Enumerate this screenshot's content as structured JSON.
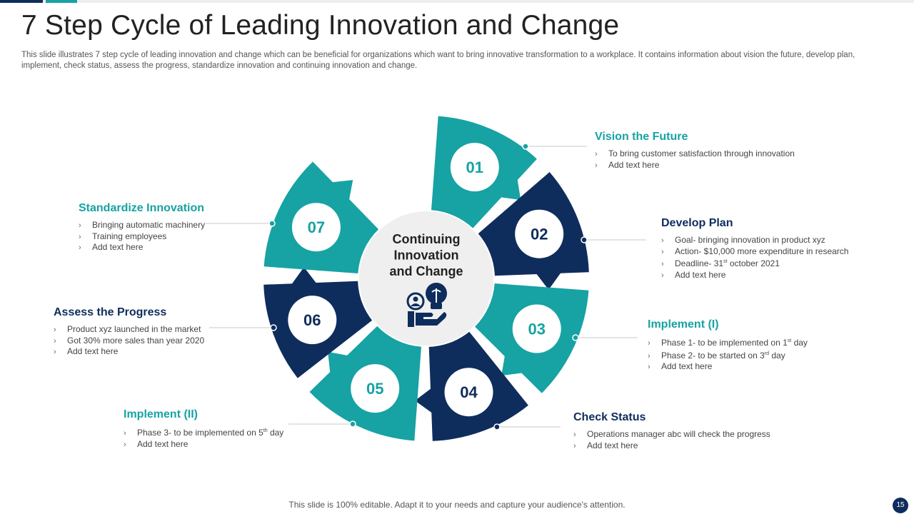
{
  "title": "7 Step Cycle of Leading Innovation and Change",
  "subtitle": "This slide illustrates 7 step cycle of leading innovation and change which can be beneficial for organizations which want to bring innovative transformation to a workplace. It contains information about vision the future, develop plan, implement, check status, assess the progress, standardize innovation and continuing innovation and change.",
  "center": {
    "line1": "Continuing",
    "line2": "Innovation",
    "line3": "and Change",
    "icon": "innovation-lightbulb-hand-icon"
  },
  "colors": {
    "teal": "#17a2a3",
    "navy": "#0e2d5c",
    "center_fill": "#efefef"
  },
  "steps": [
    {
      "number": "01",
      "label": "Vision the Future",
      "color": "teal",
      "bullets": [
        [
          "To bring customer satisfaction through  innovation",
          "",
          ""
        ],
        [
          "Add text here",
          "",
          ""
        ]
      ]
    },
    {
      "number": "02",
      "label": "Develop Plan",
      "color": "navy",
      "bullets": [
        [
          "Goal- bringing innovation in product xyz",
          "",
          ""
        ],
        [
          "Action- $10,000 more expenditure in research",
          "",
          ""
        ],
        [
          "Deadline- 31",
          "st",
          " october 2021"
        ],
        [
          "Add text here",
          "",
          ""
        ]
      ]
    },
    {
      "number": "03",
      "label": "Implement (I)",
      "color": "teal",
      "bullets": [
        [
          "Phase 1- to  be implemented on 1",
          "st",
          " day"
        ],
        [
          "Phase 2- to  be started on 3",
          "rd",
          " day"
        ],
        [
          "Add text here",
          "",
          ""
        ]
      ]
    },
    {
      "number": "04",
      "label": "Check Status",
      "color": "navy",
      "bullets": [
        [
          "Operations manager abc will check the progress",
          "",
          ""
        ],
        [
          "Add text here",
          "",
          ""
        ]
      ]
    },
    {
      "number": "05",
      "label": "Implement (II)",
      "color": "teal",
      "bullets": [
        [
          "Phase 3- to  be implemented on 5",
          "th",
          " day"
        ],
        [
          "Add text here",
          "",
          ""
        ]
      ]
    },
    {
      "number": "06",
      "label": "Assess the Progress",
      "color": "navy",
      "bullets": [
        [
          "Product xyz  launched in the market",
          "",
          ""
        ],
        [
          "Got 30% more sales than year 2020",
          "",
          ""
        ],
        [
          "Add text here",
          "",
          ""
        ]
      ]
    },
    {
      "number": "07",
      "label": "Standardize Innovation",
      "color": "teal",
      "bullets": [
        [
          "Bringing automatic machinery",
          "",
          ""
        ],
        [
          "Training employees",
          "",
          ""
        ],
        [
          "Add text here",
          "",
          ""
        ]
      ]
    }
  ],
  "footer": "This slide is 100% editable. Adapt it to your needs and capture your audience's attention.",
  "page_number": "15"
}
